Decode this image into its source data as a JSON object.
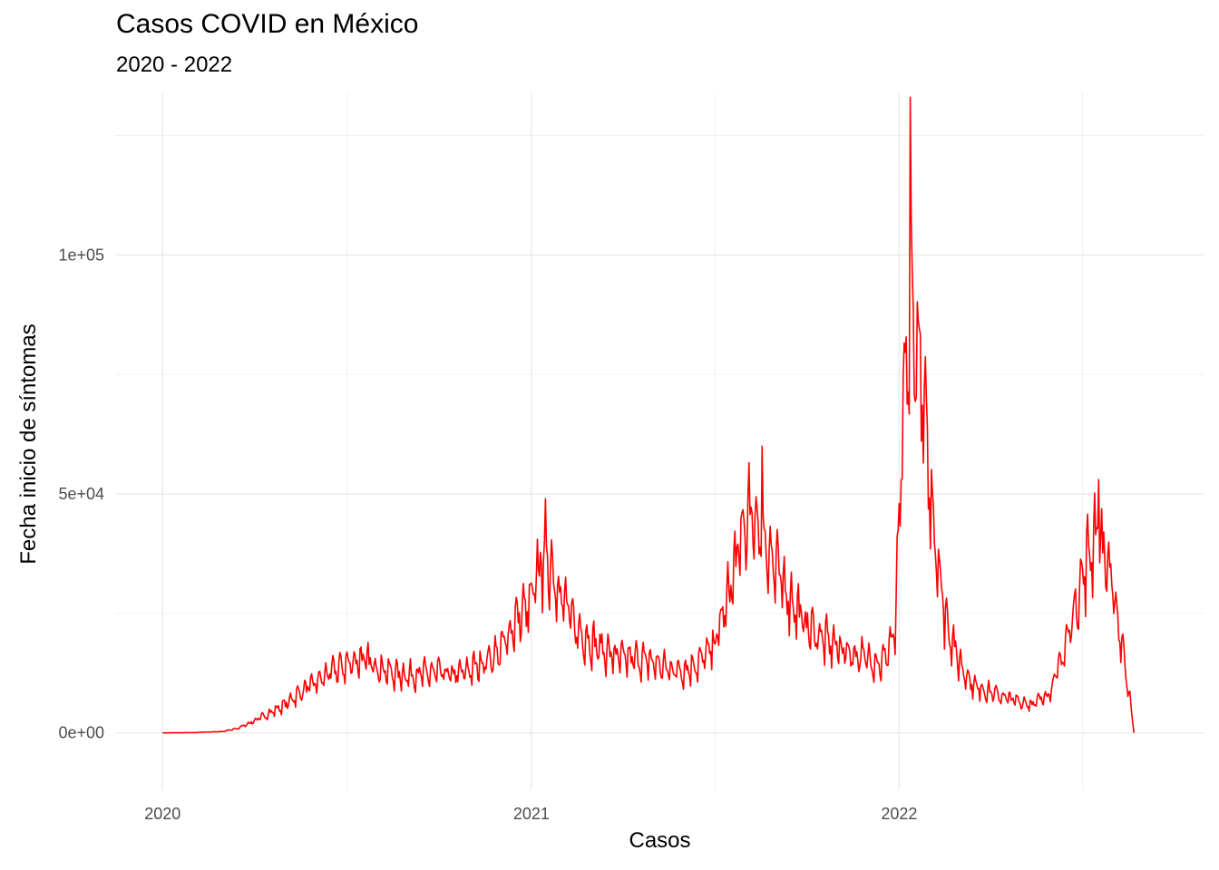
{
  "chart_data": {
    "type": "line",
    "title": "Casos COVID en México",
    "subtitle": "2020 - 2022",
    "xlabel": "Casos",
    "ylabel": "Fecha inicio de síntomas",
    "x_ticks": [
      "2020",
      "2021",
      "2022"
    ],
    "y_ticks": [
      "0e+00",
      "5e+04",
      "1e+05"
    ],
    "xlim": [
      "2019-11-15",
      "2022-10-31"
    ],
    "ylim": [
      -12000,
      134000
    ],
    "y_tick_values": [
      0,
      50000,
      100000
    ],
    "grid": true,
    "color": "#ff0000",
    "series": [
      {
        "points": [
          [
            "2020-01-01",
            0
          ],
          [
            "2020-02-01",
            60
          ],
          [
            "2020-03-01",
            300
          ],
          [
            "2020-03-15",
            900
          ],
          [
            "2020-04-01",
            2500
          ],
          [
            "2020-04-15",
            4000
          ],
          [
            "2020-05-01",
            5800
          ],
          [
            "2020-05-15",
            8200
          ],
          [
            "2020-06-01",
            10500
          ],
          [
            "2020-06-15",
            12500
          ],
          [
            "2020-07-01",
            14200
          ],
          [
            "2020-07-15",
            15500
          ],
          [
            "2020-08-01",
            14000
          ],
          [
            "2020-08-15",
            12500
          ],
          [
            "2020-09-01",
            12000
          ],
          [
            "2020-09-15",
            12400
          ],
          [
            "2020-10-01",
            12600
          ],
          [
            "2020-10-15",
            12000
          ],
          [
            "2020-11-01",
            13200
          ],
          [
            "2020-11-15",
            14800
          ],
          [
            "2020-12-01",
            17000
          ],
          [
            "2020-12-15",
            23000
          ],
          [
            "2021-01-01",
            27000
          ],
          [
            "2021-01-10",
            36000
          ],
          [
            "2021-01-20",
            35000
          ],
          [
            "2021-02-01",
            28000
          ],
          [
            "2021-02-15",
            21500
          ],
          [
            "2021-03-01",
            19000
          ],
          [
            "2021-03-15",
            17000
          ],
          [
            "2021-04-01",
            15500
          ],
          [
            "2021-04-15",
            15500
          ],
          [
            "2021-05-01",
            14800
          ],
          [
            "2021-05-15",
            13500
          ],
          [
            "2021-06-01",
            13000
          ],
          [
            "2021-06-15",
            14500
          ],
          [
            "2021-07-01",
            18000
          ],
          [
            "2021-07-15",
            28000
          ],
          [
            "2021-08-01",
            44000
          ],
          [
            "2021-08-15",
            44000
          ],
          [
            "2021-09-01",
            34000
          ],
          [
            "2021-09-15",
            28000
          ],
          [
            "2021-10-01",
            22500
          ],
          [
            "2021-10-15",
            20000
          ],
          [
            "2021-11-01",
            18000
          ],
          [
            "2021-11-15",
            16500
          ],
          [
            "2021-12-01",
            15500
          ],
          [
            "2021-12-15",
            14500
          ],
          [
            "2021-12-28",
            21000
          ],
          [
            "2022-01-05",
            65000
          ],
          [
            "2022-01-12",
            88000
          ],
          [
            "2022-01-20",
            80000
          ],
          [
            "2022-02-01",
            50000
          ],
          [
            "2022-02-15",
            25000
          ],
          [
            "2022-03-01",
            15000
          ],
          [
            "2022-03-15",
            10000
          ],
          [
            "2022-04-01",
            8500
          ],
          [
            "2022-04-15",
            7500
          ],
          [
            "2022-05-01",
            6500
          ],
          [
            "2022-05-15",
            6000
          ],
          [
            "2022-06-01",
            9000
          ],
          [
            "2022-06-15",
            18000
          ],
          [
            "2022-07-01",
            32000
          ],
          [
            "2022-07-15",
            42000
          ],
          [
            "2022-07-25",
            37000
          ],
          [
            "2022-08-05",
            25000
          ],
          [
            "2022-08-15",
            12000
          ],
          [
            "2022-08-22",
            0
          ]
        ],
        "spikes": [
          [
            "2021-01-15",
            49000
          ],
          [
            "2021-08-18",
            60000
          ],
          [
            "2022-01-12",
            133000
          ],
          [
            "2022-07-18",
            53000
          ]
        ]
      }
    ]
  }
}
